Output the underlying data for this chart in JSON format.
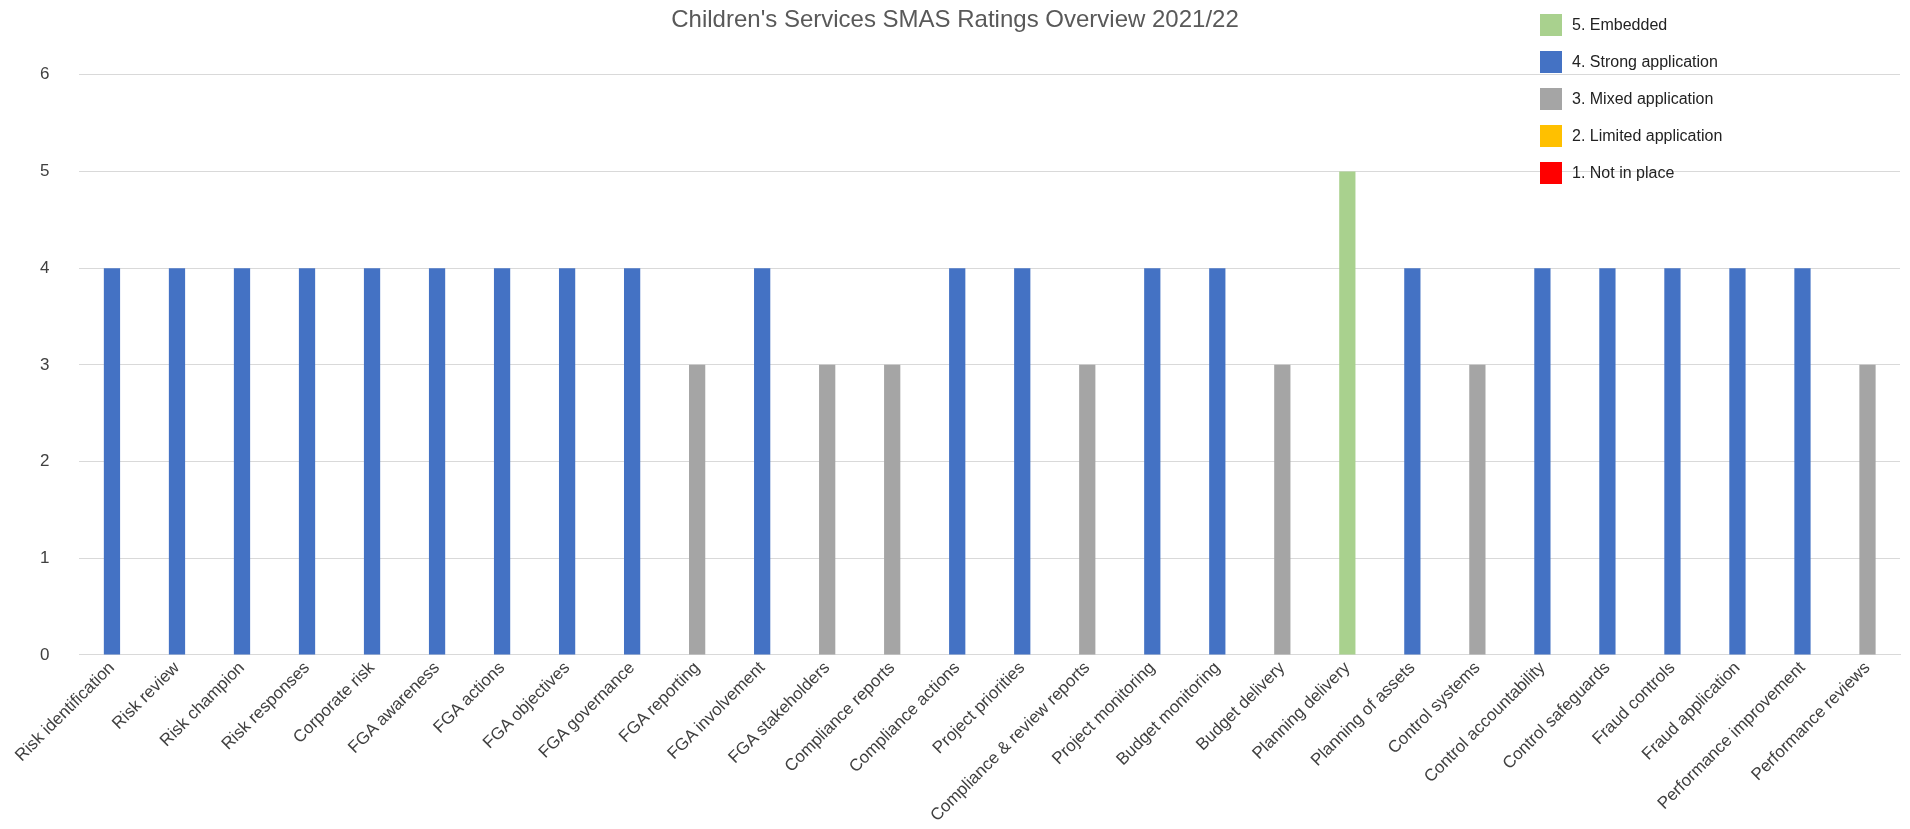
{
  "chart_data": {
    "type": "bar",
    "title": "Children's Services SMAS Ratings Overview 2021/22",
    "categories": [
      "Risk identification",
      "Risk review",
      "Risk champion",
      "Risk responses",
      "Corporate risk",
      "FGA awareness",
      "FGA actions",
      "FGA objectives",
      "FGA governance",
      "FGA reporting",
      "FGA involvement",
      "FGA stakeholders",
      "Compliance reports",
      "Compliance actions",
      "Project priorities",
      "Compliance & review reports",
      "Project monitoring",
      "Budget monitoring",
      "Budget delivery",
      "Planning delivery",
      "Planning of assets",
      "Control systems",
      "Control accountability",
      "Control safeguards",
      "Fraud controls",
      "Fraud application",
      "Performance improvement",
      "Performance reviews"
    ],
    "series": [
      {
        "name": "5. Embedded",
        "color": "#a9d18e",
        "values": [
          null,
          null,
          null,
          null,
          null,
          null,
          null,
          null,
          null,
          null,
          null,
          null,
          null,
          null,
          null,
          null,
          null,
          null,
          null,
          5,
          null,
          null,
          null,
          null,
          null,
          null,
          null,
          null
        ]
      },
      {
        "name": "4. Strong application",
        "color": "#4472c4",
        "values": [
          4,
          4,
          4,
          4,
          4,
          4,
          4,
          4,
          4,
          null,
          4,
          null,
          null,
          4,
          4,
          null,
          4,
          4,
          null,
          null,
          4,
          null,
          4,
          4,
          4,
          4,
          4,
          null
        ]
      },
      {
        "name": "3. Mixed application",
        "color": "#a5a5a5",
        "values": [
          null,
          null,
          null,
          null,
          null,
          null,
          null,
          null,
          null,
          3,
          null,
          3,
          3,
          null,
          null,
          3,
          null,
          null,
          3,
          null,
          null,
          3,
          null,
          null,
          null,
          null,
          null,
          3
        ]
      },
      {
        "name": "2. Limited application",
        "color": "#ffc000",
        "values": [
          null,
          null,
          null,
          null,
          null,
          null,
          null,
          null,
          null,
          null,
          null,
          null,
          null,
          null,
          null,
          null,
          null,
          null,
          null,
          null,
          null,
          null,
          null,
          null,
          null,
          null,
          null,
          null
        ]
      },
      {
        "name": "1. Not in place",
        "color": "#ff0000",
        "values": [
          null,
          null,
          null,
          null,
          null,
          null,
          null,
          null,
          null,
          null,
          null,
          null,
          null,
          null,
          null,
          null,
          null,
          null,
          null,
          null,
          null,
          null,
          null,
          null,
          null,
          null,
          null,
          null
        ]
      }
    ],
    "stacked": true,
    "ylim": [
      0,
      6
    ],
    "yticks": [
      0,
      1,
      2,
      3,
      4,
      5,
      6
    ],
    "grid": "y",
    "legend": "top right"
  }
}
